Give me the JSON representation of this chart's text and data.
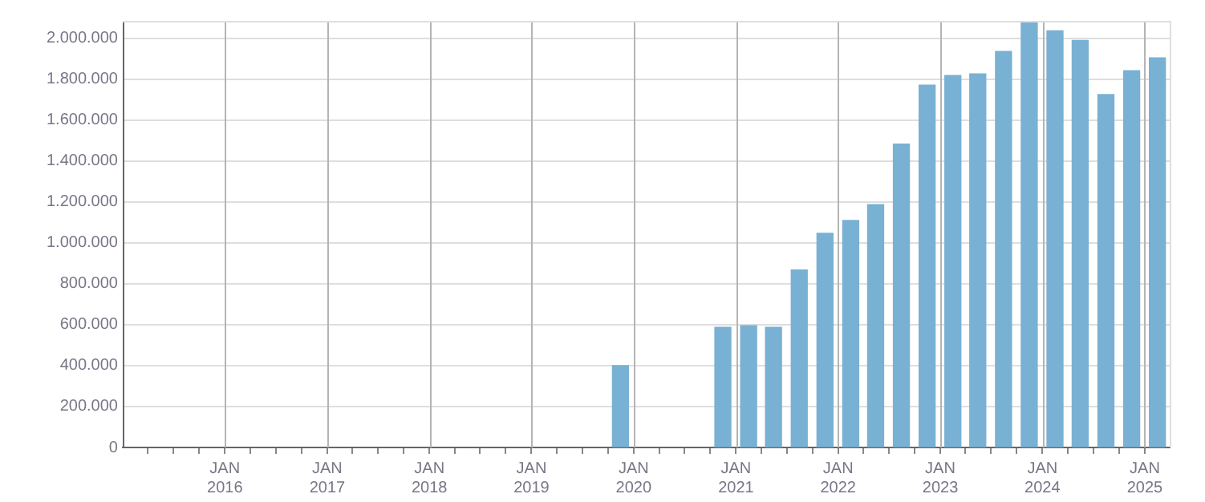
{
  "chart_data": {
    "type": "bar",
    "color": "#78b1d3",
    "x": [
      "2019-11-15",
      "2020-11-15",
      "2021-02-15",
      "2021-05-15",
      "2021-08-15",
      "2021-11-15",
      "2022-02-15",
      "2022-05-15",
      "2022-08-15",
      "2022-11-15",
      "2023-02-15",
      "2023-05-15",
      "2023-08-15",
      "2023-11-15",
      "2024-02-15",
      "2024-05-15",
      "2024-08-15",
      "2024-11-15",
      "2025-02-15"
    ],
    "values": [
      400000,
      587000,
      595000,
      587000,
      867000,
      1047000,
      1109000,
      1187000,
      1483000,
      1771000,
      1818000,
      1826000,
      1935000,
      2075000,
      2036000,
      1989000,
      1725000,
      1841000,
      1904000
    ],
    "xlim": [
      "2015-01-01",
      "2025-03-31"
    ],
    "xticks": [
      {
        "value": "2015-04-01",
        "label": null
      },
      {
        "value": "2015-07-01",
        "label": null
      },
      {
        "value": "2015-10-01",
        "label": null
      },
      {
        "value": "2016-01-01",
        "label": "JAN 2016"
      },
      {
        "value": "2016-04-01",
        "label": null
      },
      {
        "value": "2016-07-01",
        "label": null
      },
      {
        "value": "2016-10-01",
        "label": null
      },
      {
        "value": "2017-01-01",
        "label": "JAN 2017"
      },
      {
        "value": "2017-04-01",
        "label": null
      },
      {
        "value": "2017-07-01",
        "label": null
      },
      {
        "value": "2017-10-01",
        "label": null
      },
      {
        "value": "2018-01-01",
        "label": "JAN 2018"
      },
      {
        "value": "2018-04-01",
        "label": null
      },
      {
        "value": "2018-07-01",
        "label": null
      },
      {
        "value": "2018-10-01",
        "label": null
      },
      {
        "value": "2019-01-01",
        "label": "JAN 2019"
      },
      {
        "value": "2019-04-01",
        "label": null
      },
      {
        "value": "2019-07-01",
        "label": null
      },
      {
        "value": "2019-10-01",
        "label": null
      },
      {
        "value": "2020-01-01",
        "label": "JAN 2020"
      },
      {
        "value": "2020-04-01",
        "label": null
      },
      {
        "value": "2020-07-01",
        "label": null
      },
      {
        "value": "2020-10-01",
        "label": null
      },
      {
        "value": "2021-01-01",
        "label": "JAN 2021"
      },
      {
        "value": "2021-04-01",
        "label": null
      },
      {
        "value": "2021-07-01",
        "label": null
      },
      {
        "value": "2021-10-01",
        "label": null
      },
      {
        "value": "2022-01-01",
        "label": "JAN 2022"
      },
      {
        "value": "2022-04-01",
        "label": null
      },
      {
        "value": "2022-07-01",
        "label": null
      },
      {
        "value": "2022-10-01",
        "label": null
      },
      {
        "value": "2023-01-01",
        "label": "JAN 2023"
      },
      {
        "value": "2023-04-01",
        "label": null
      },
      {
        "value": "2023-07-01",
        "label": null
      },
      {
        "value": "2023-10-01",
        "label": null
      },
      {
        "value": "2024-01-01",
        "label": "JAN 2024"
      },
      {
        "value": "2024-04-01",
        "label": null
      },
      {
        "value": "2024-07-01",
        "label": null
      },
      {
        "value": "2024-10-01",
        "label": null
      },
      {
        "value": "2025-01-01",
        "label": "JAN 2025"
      }
    ],
    "ylim": [
      0,
      2085000
    ],
    "yticks": [
      {
        "value": 0,
        "label": "0"
      },
      {
        "value": 200000,
        "label": "200.000"
      },
      {
        "value": 400000,
        "label": "400.000"
      },
      {
        "value": 600000,
        "label": "600.000"
      },
      {
        "value": 800000,
        "label": "800.000"
      },
      {
        "value": 1000000,
        "label": "1.000.000"
      },
      {
        "value": 1200000,
        "label": "1.200.000"
      },
      {
        "value": 1400000,
        "label": "1.400.000"
      },
      {
        "value": 1600000,
        "label": "1.600.000"
      },
      {
        "value": 1800000,
        "label": "1.800.000"
      },
      {
        "value": 2000000,
        "label": "2.000.000"
      }
    ],
    "grid": true,
    "legend": false
  }
}
